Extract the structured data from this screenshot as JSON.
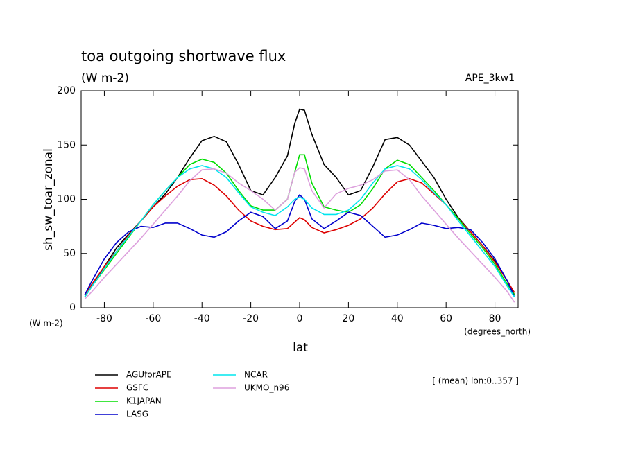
{
  "chart_data": {
    "type": "line",
    "title": "toa outgoing shortwave flux",
    "subtitle": "(W m-2)",
    "dataset": "APE_3kw1",
    "ylabel": "sh_sw_toar_zonal",
    "xlabel": "lat",
    "y_units": "(W m-2)",
    "x_units": "(degrees_north)",
    "note": "[ (mean) lon:0..357 ]",
    "xlim": [
      -89.5,
      89.5
    ],
    "ylim": [
      0,
      200
    ],
    "xticks": [
      -80,
      -60,
      -40,
      -20,
      0,
      20,
      40,
      60,
      80
    ],
    "yticks": [
      0,
      50,
      100,
      150,
      200
    ],
    "x": [
      -88,
      -85,
      -80,
      -75,
      -70,
      -65,
      -60,
      -55,
      -50,
      -45,
      -40,
      -35,
      -30,
      -25,
      -20,
      -15,
      -10,
      -5,
      -2,
      0,
      2,
      5,
      10,
      15,
      20,
      25,
      30,
      35,
      40,
      45,
      50,
      55,
      60,
      65,
      70,
      75,
      80,
      85,
      88
    ],
    "series": [
      {
        "name": "AGUforAPE",
        "color": "#000000",
        "values": [
          10,
          20,
          38,
          55,
          68,
          80,
          93,
          105,
          120,
          138,
          154,
          158,
          153,
          132,
          108,
          104,
          120,
          140,
          170,
          183,
          182,
          160,
          132,
          120,
          104,
          108,
          130,
          155,
          157,
          150,
          135,
          120,
          100,
          83,
          70,
          57,
          43,
          25,
          12
        ]
      },
      {
        "name": "GSFC",
        "color": "#dd0000",
        "values": [
          12,
          22,
          38,
          52,
          67,
          80,
          93,
          103,
          112,
          118,
          119,
          113,
          103,
          90,
          80,
          75,
          72,
          73,
          79,
          83,
          81,
          74,
          69,
          72,
          76,
          82,
          92,
          105,
          116,
          119,
          115,
          105,
          95,
          82,
          70,
          57,
          42,
          25,
          14
        ]
      },
      {
        "name": "K1JAPAN",
        "color": "#00dd00",
        "values": [
          10,
          20,
          35,
          50,
          65,
          80,
          95,
          108,
          120,
          132,
          137,
          134,
          124,
          108,
          94,
          90,
          90,
          100,
          125,
          141,
          141,
          115,
          93,
          90,
          88,
          95,
          110,
          128,
          136,
          132,
          120,
          108,
          95,
          82,
          68,
          55,
          40,
          22,
          12
        ]
      },
      {
        "name": "LASG",
        "color": "#0000cc",
        "values": [
          12,
          25,
          45,
          60,
          70,
          75,
          74,
          78,
          78,
          73,
          67,
          65,
          70,
          80,
          88,
          84,
          73,
          80,
          98,
          104,
          100,
          82,
          73,
          80,
          88,
          85,
          75,
          65,
          67,
          72,
          78,
          76,
          73,
          74,
          72,
          60,
          45,
          25,
          10
        ]
      },
      {
        "name": "NCAR",
        "color": "#00e5ee",
        "values": [
          10,
          20,
          36,
          52,
          66,
          80,
          95,
          108,
          120,
          128,
          131,
          128,
          120,
          106,
          93,
          88,
          85,
          93,
          100,
          102,
          100,
          92,
          86,
          86,
          90,
          100,
          115,
          128,
          131,
          128,
          118,
          106,
          95,
          80,
          66,
          52,
          38,
          20,
          10
        ]
      },
      {
        "name": "UKMO_n96",
        "color": "#dda0dd",
        "values": [
          8,
          15,
          28,
          40,
          52,
          64,
          77,
          90,
          103,
          117,
          127,
          128,
          124,
          115,
          108,
          100,
          90,
          100,
          125,
          129,
          128,
          108,
          92,
          105,
          110,
          113,
          118,
          126,
          127,
          118,
          103,
          90,
          77,
          64,
          52,
          40,
          28,
          15,
          5
        ]
      }
    ]
  }
}
